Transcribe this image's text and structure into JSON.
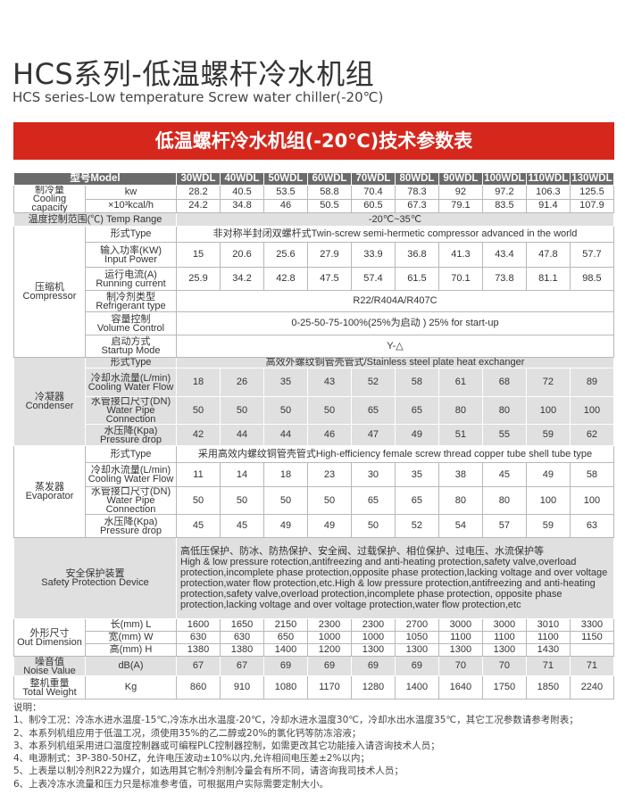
{
  "title": "HCS系列-低温螺杆冷水机组",
  "subtitle": "HCS series-Low temperature Screw water chiller(-20℃)",
  "banner": "低温螺杆冷水机组(-20℃)技术参数表",
  "colors": {
    "banner": "#d6271d",
    "header": "#6b6b6b",
    "shade": "#e0e0e0"
  },
  "table": {
    "model_header": "型号Model",
    "models": [
      "30WDL",
      "40WDL",
      "50WDL",
      "60WDL",
      "70WDL",
      "80WDL",
      "90WDL",
      "100WDL",
      "110WDL",
      "130WDL"
    ],
    "cooling": {
      "label": "制冷量",
      "label_en": "Cooling capacity",
      "kw_unit": "kw",
      "kw": [
        "28.2",
        "40.5",
        "53.5",
        "58.8",
        "70.4",
        "78.3",
        "92",
        "97.2",
        "106.3",
        "125.5"
      ],
      "kcal_unit": "×10³kcal/h",
      "kcal": [
        "24.2",
        "34.8",
        "46",
        "50.5",
        "60.5",
        "67.3",
        "79.1",
        "83.5",
        "91.4",
        "107.9"
      ]
    },
    "temp_range": {
      "label": "温度控制范围(℃) Temp Range",
      "value": "-20℃~35℃"
    },
    "compressor": {
      "label": "压缩机",
      "label_en": "Compressor",
      "type_label": "形式Type",
      "type": "非对称半封闭双螺杆式Twin-screw semi-hermetic compressor advanced in the world",
      "power_label": "输入功率(KW)",
      "power_label_en": "Input Power",
      "power": [
        "15",
        "20.6",
        "25.6",
        "27.9",
        "33.9",
        "36.8",
        "41.3",
        "43.4",
        "47.8",
        "57.7"
      ],
      "current_label": "运行电流(A)",
      "current_label_en": "Running current",
      "current": [
        "25.9",
        "34.2",
        "42.8",
        "47.5",
        "57.4",
        "61.5",
        "70.1",
        "73.8",
        "81.1",
        "98.5"
      ],
      "refrigerant_label": "制冷剂类型",
      "refrigerant_label_en": "Refrigerant type",
      "refrigerant": "R22/R404A/R407C",
      "volume_label": "容量控制",
      "volume_label_en": "Volume Control",
      "volume": "0-25-50-75-100%(25%为启动 ) 25% for start-up",
      "startup_label": "启动方式",
      "startup_label_en": "Startup Mode",
      "startup": "Y-△"
    },
    "condenser": {
      "label": "冷凝器",
      "label_en": "Condenser",
      "type_label": "形式Type",
      "type": "高效外螺纹铜管壳管式/Stainless steel plate heat exchanger",
      "flow_label": "冷却水流量(L/min)",
      "flow_label_en": "Cooling Water Flow",
      "flow": [
        "18",
        "26",
        "35",
        "43",
        "52",
        "58",
        "61",
        "68",
        "72",
        "89"
      ],
      "pipe_label": "水管接口尺寸(DN)",
      "pipe_label_en": "Water Pipe Connection",
      "pipe": [
        "50",
        "50",
        "50",
        "50",
        "65",
        "65",
        "80",
        "80",
        "100",
        "100"
      ],
      "drop_label": "水压降(Kpa)",
      "drop_label_en": "Pressure drop",
      "drop": [
        "42",
        "44",
        "44",
        "46",
        "47",
        "49",
        "51",
        "55",
        "59",
        "62"
      ]
    },
    "evaporator": {
      "label": "蒸发器",
      "label_en": "Evaporator",
      "type_label": "形式Type",
      "type": "采用高效内螺纹铜管壳管式High-efficiency female screw thread copper tube shell tube type",
      "flow_label": "冷却水流量(L/min)",
      "flow_label_en": "Cooling Water Flow",
      "flow": [
        "11",
        "14",
        "18",
        "23",
        "30",
        "35",
        "38",
        "45",
        "49",
        "58"
      ],
      "pipe_label": "水管接口尺寸(DN)",
      "pipe_label_en": "Water Pipe Connection",
      "pipe": [
        "50",
        "50",
        "50",
        "50",
        "65",
        "65",
        "80",
        "80",
        "100",
        "100"
      ],
      "drop_label": "水压降(Kpa)",
      "drop_label_en": "Pressure drop",
      "drop": [
        "45",
        "45",
        "49",
        "49",
        "50",
        "52",
        "54",
        "57",
        "59",
        "63"
      ]
    },
    "safety": {
      "label": "安全保护装置",
      "label_en": "Safety Protection Device",
      "text_cn": "高低压保护、防冰、防热保护、安全阀、过载保护、相位保护、过电压、水流保护等",
      "text_en": "High & low pressure rotection,antifreezing and anti-heating protection,safety valve,overload protection,incomplete phase protection,opposite phase protection,lacking voltage and over voltage protection,water flow protection,etc.High & low pressure protection,antifreezing and anti-heating protection,safety valve,overload protection,incomplete phase protection, opposite phase protection,lacking voltage and over voltage protection,water flow protection,etc"
    },
    "dimension": {
      "label": "外形尺寸",
      "label_en": "Out Dimension",
      "l_label": "长(mm)  L",
      "l": [
        "1600",
        "1650",
        "2150",
        "2300",
        "2300",
        "2700",
        "3000",
        "3000",
        "3010",
        "3300"
      ],
      "w_label": "宽(mm)  W",
      "w": [
        "630",
        "630",
        "650",
        "1000",
        "1000",
        "1050",
        "1100",
        "1100",
        "1100",
        "1150"
      ],
      "h_label": "高(mm)  H",
      "h": [
        "1380",
        "1380",
        "1400",
        "1200",
        "1300",
        "1300",
        "1300",
        "1300",
        "1430",
        ""
      ]
    },
    "noise": {
      "label": "噪音值",
      "label_en": "Noise Value",
      "unit": "dB(A)",
      "values": [
        "67",
        "67",
        "69",
        "69",
        "69",
        "69",
        "70",
        "70",
        "71",
        "71"
      ]
    },
    "weight": {
      "label": "整机重量",
      "label_en": "Total Weight",
      "unit": "Kg",
      "values": [
        "860",
        "910",
        "1080",
        "1170",
        "1280",
        "1400",
        "1640",
        "1750",
        "1850",
        "2240"
      ]
    }
  },
  "notes": [
    "说明：",
    "1、制冷工况：冷冻水进水温度-15℃,冷冻水出水温度-20℃，冷却水进水温度30℃，冷却水出水温度35℃，其它工况参数请参考附表；",
    "2、本系列机组应用于低温工况，须使用35%的乙二醇或20%的氯化钙等防冻溶液；",
    "3、本系列机组采用进口温度控制器或可编程PLC控制器控制，如需更改其它功能接入请咨询技术人员；",
    "4、电源制式：3P-380-50HZ，允许电压波动±10%以内,允许相间电压差±2%以内；",
    "5、上表是以制冷剂R22为媒介，如选用其它制冷剂制冷量会有所不同，请咨询我司技术人员；",
    "6、上表冷冻水流量和压力只是标准参考值，可根据用户实际需要定制大小。"
  ]
}
